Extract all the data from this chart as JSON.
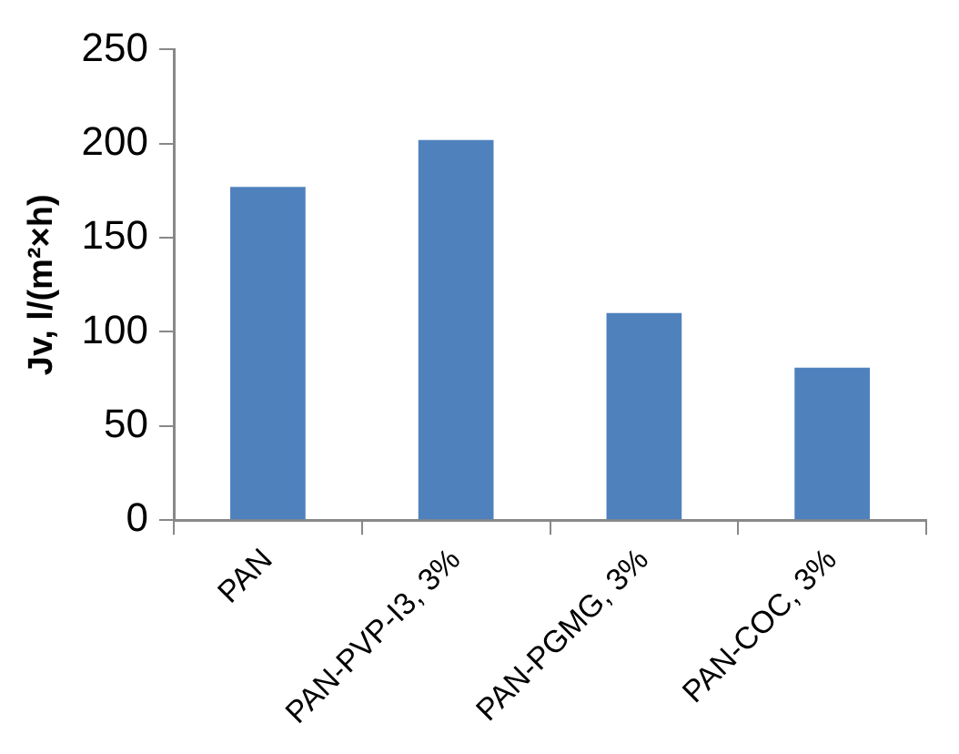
{
  "chart_data": {
    "type": "bar",
    "ylabel": "Jv, l/(m²×h)",
    "categories": [
      "PAN",
      "PAN-PVP-I3, 3%",
      "PAN-PGMG, 3%",
      "PAN-COC, 3%"
    ],
    "values": [
      177,
      202,
      110,
      81
    ],
    "color": "#4f81bd",
    "ylim": [
      0,
      250
    ],
    "yticks": [
      0,
      50,
      100,
      150,
      200,
      250
    ],
    "grid": false,
    "legend": false
  }
}
